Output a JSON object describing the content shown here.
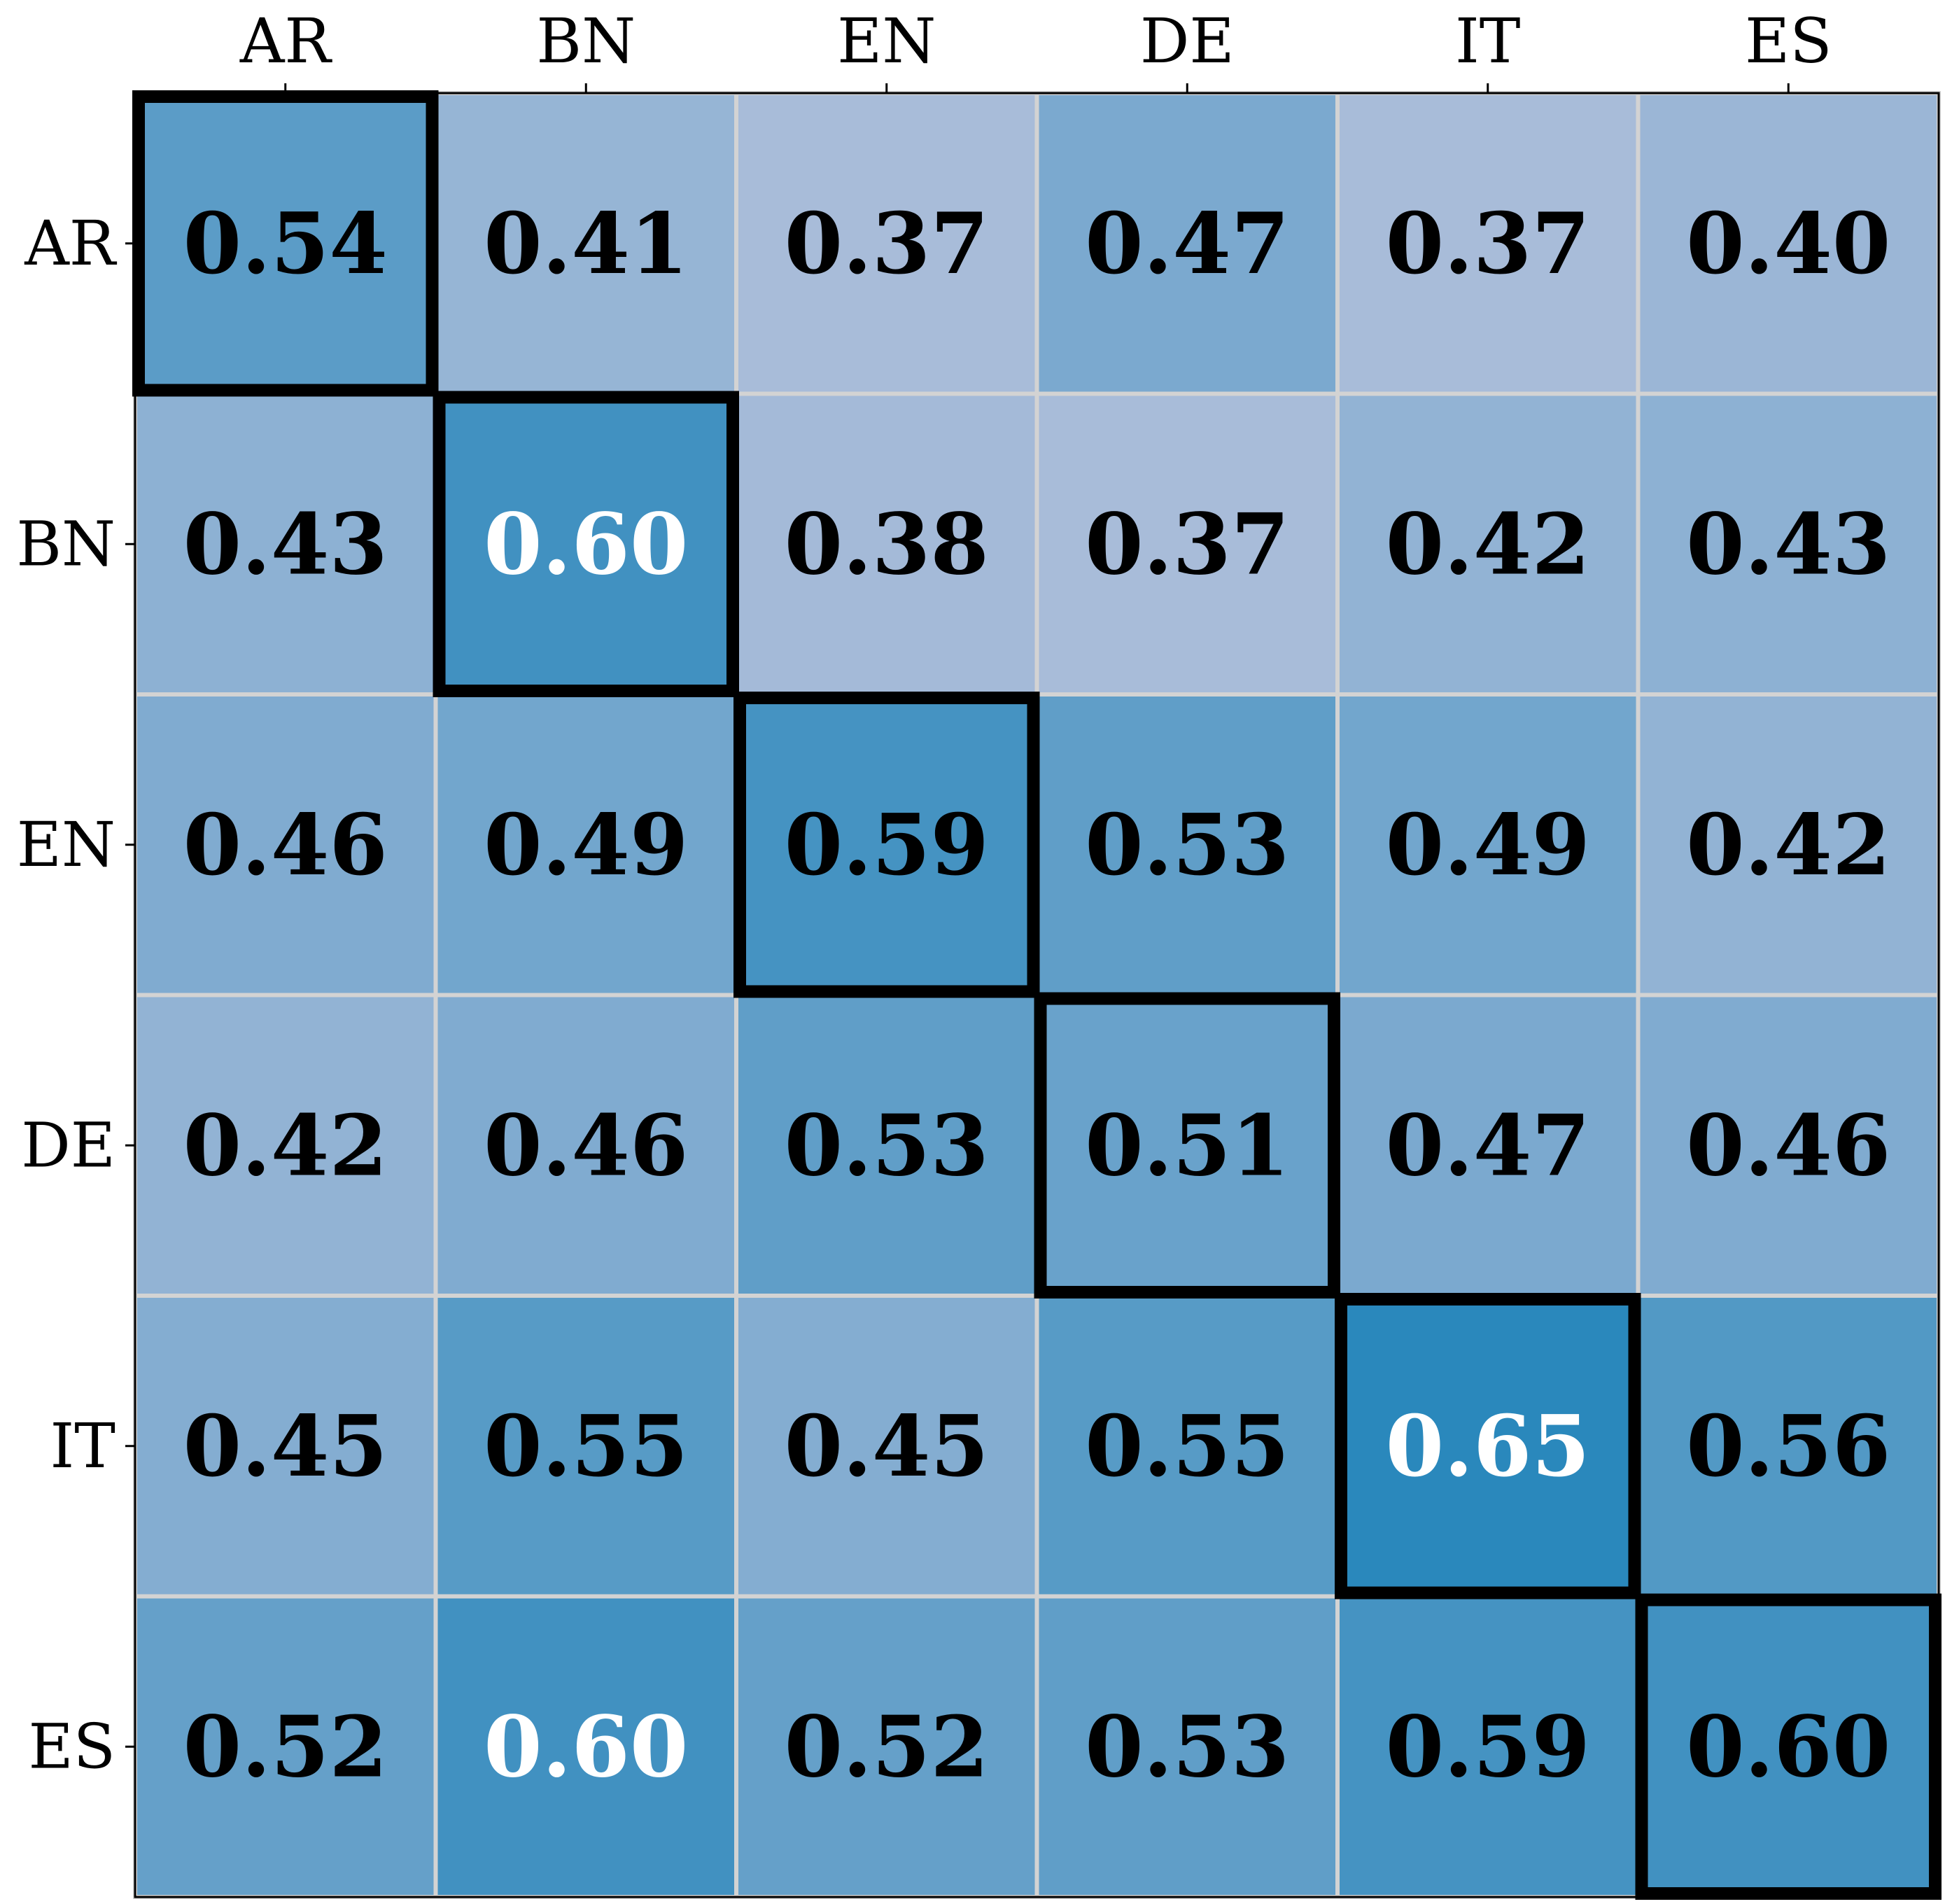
{
  "chart_data": {
    "type": "heatmap",
    "title": "",
    "xlabel": "",
    "ylabel": "",
    "x_categories": [
      "AR",
      "BN",
      "EN",
      "DE",
      "IT",
      "ES"
    ],
    "y_categories": [
      "AR",
      "BN",
      "EN",
      "DE",
      "IT",
      "ES"
    ],
    "values": [
      [
        0.54,
        0.41,
        0.37,
        0.47,
        0.37,
        0.4
      ],
      [
        0.43,
        0.6,
        0.38,
        0.37,
        0.42,
        0.43
      ],
      [
        0.46,
        0.49,
        0.59,
        0.53,
        0.49,
        0.42
      ],
      [
        0.42,
        0.46,
        0.53,
        0.51,
        0.47,
        0.46
      ],
      [
        0.45,
        0.55,
        0.45,
        0.55,
        0.65,
        0.56
      ],
      [
        0.52,
        0.6,
        0.52,
        0.53,
        0.59,
        0.6
      ]
    ],
    "value_labels": [
      [
        "0.54",
        "0.41",
        "0.37",
        "0.47",
        "0.37",
        "0.40"
      ],
      [
        "0.43",
        "0.60",
        "0.38",
        "0.37",
        "0.42",
        "0.43"
      ],
      [
        "0.46",
        "0.49",
        "0.59",
        "0.53",
        "0.49",
        "0.42"
      ],
      [
        "0.42",
        "0.46",
        "0.53",
        "0.51",
        "0.47",
        "0.46"
      ],
      [
        "0.45",
        "0.55",
        "0.45",
        "0.55",
        "0.65",
        "0.56"
      ],
      [
        "0.52",
        "0.60",
        "0.52",
        "0.53",
        "0.59",
        "0.60"
      ]
    ],
    "x_axis_position": "top",
    "highlight": "diagonal",
    "colormap": "Blues",
    "color_range": [
      0.37,
      0.65
    ],
    "color_low": "#a8bcd9",
    "color_high": "#2a88bc",
    "highlight_color": "#000000",
    "cell_border_color": "#d3d3d3",
    "light_text_color": "#ffffff",
    "dark_text_color": "#000000",
    "light_text_threshold": 0.6
  }
}
